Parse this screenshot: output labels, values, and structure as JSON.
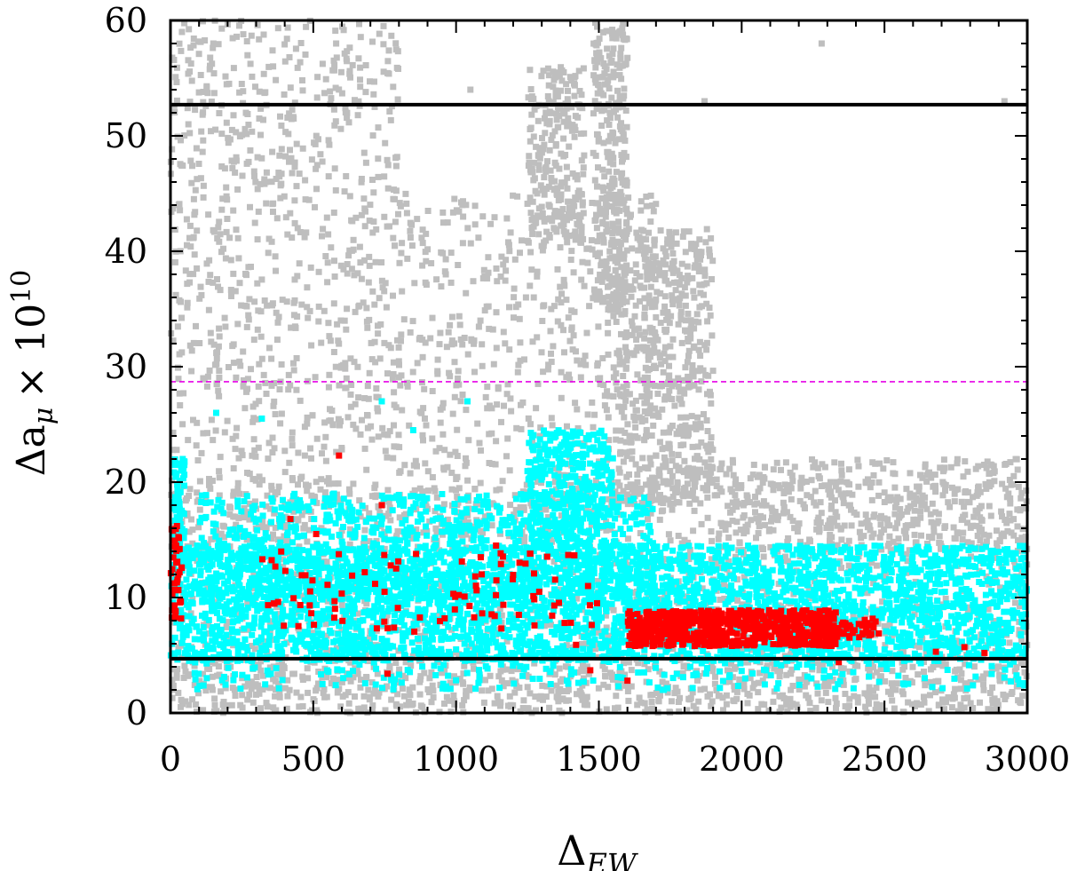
{
  "chart_data": {
    "type": "scatter",
    "title": "",
    "xlabel": "Δ",
    "xlabel_sub": "EW",
    "ylabel": "Δa",
    "ylabel_sub": "μ",
    "ylabel_suffix": "× 10",
    "ylabel_sup": "10",
    "xlim": [
      0,
      3000
    ],
    "ylim": [
      0,
      60
    ],
    "x_ticks": [
      0,
      500,
      1000,
      1500,
      2000,
      2500,
      3000
    ],
    "y_ticks": [
      0,
      10,
      20,
      30,
      40,
      50,
      60
    ],
    "x_tick_labels": [
      "0",
      "500",
      "1000",
      "1500",
      "2000",
      "2500",
      "3000"
    ],
    "y_tick_labels": [
      "0",
      "10",
      "20",
      "30",
      "40",
      "50",
      "60"
    ],
    "grid": false,
    "legend": "none",
    "reference_lines": [
      {
        "y": 52.7,
        "color": "#000000",
        "style": "solid"
      },
      {
        "y": 4.7,
        "color": "#000000",
        "style": "solid"
      },
      {
        "y": 28.7,
        "color": "#e600e6",
        "style": "dashed"
      }
    ],
    "series": [
      {
        "color": "#bebebe",
        "regions": [
          {
            "x": [
              0,
              3000
            ],
            "y": [
              0,
              20
            ],
            "n": 1600
          },
          {
            "x": [
              0,
              800
            ],
            "y": [
              15,
              60
            ],
            "n": 900
          },
          {
            "x": [
              800,
              1700
            ],
            "y": [
              15,
              45
            ],
            "n": 600
          },
          {
            "x": [
              1250,
              1450
            ],
            "y": [
              40,
              56
            ],
            "n": 250
          },
          {
            "x": [
              1480,
              1600
            ],
            "y": [
              35,
              60
            ],
            "n": 300
          },
          {
            "x": [
              1550,
              1900
            ],
            "y": [
              18,
              42
            ],
            "n": 600
          },
          {
            "x": [
              1900,
              3000
            ],
            "y": [
              14,
              22
            ],
            "n": 400
          },
          {
            "x": [
              0,
              3000
            ],
            "y": [
              0,
              5
            ],
            "n": 500
          }
        ],
        "points": [
          [
            40,
            59
          ],
          [
            150,
            58
          ],
          [
            580,
            58
          ],
          [
            1050,
            54
          ],
          [
            1870,
            53
          ],
          [
            2280,
            58
          ],
          [
            2920,
            53
          ]
        ]
      },
      {
        "color": "#00ffff",
        "regions": [
          {
            "x": [
              0,
              3000
            ],
            "y": [
              4.5,
              14.5
            ],
            "n": 3500
          },
          {
            "x": [
              100,
              1700
            ],
            "y": [
              10,
              19
            ],
            "n": 900
          },
          {
            "x": [
              1250,
              1550
            ],
            "y": [
              14,
              24.5
            ],
            "n": 350
          },
          {
            "x": [
              10,
              50
            ],
            "y": [
              12,
              22
            ],
            "n": 80
          },
          {
            "x": [
              0,
              3000
            ],
            "y": [
              2,
              5
            ],
            "n": 250
          }
        ],
        "points": [
          [
            1040,
            27
          ],
          [
            740,
            27
          ],
          [
            160,
            26
          ],
          [
            320,
            25.5
          ],
          [
            850,
            24.5
          ]
        ]
      },
      {
        "color": "#ff0000",
        "regions": [
          {
            "x": [
              1600,
              2330
            ],
            "y": [
              5.8,
              8.9
            ],
            "n": 700
          },
          {
            "x": [
              2330,
              2480
            ],
            "y": [
              6.5,
              8.2
            ],
            "n": 40
          },
          {
            "x": [
              0,
              40
            ],
            "y": [
              8,
              16.5
            ],
            "n": 40
          },
          {
            "x": [
              300,
              1500
            ],
            "y": [
              7,
              14
            ],
            "n": 90
          }
        ],
        "points": [
          [
            590,
            22.3
          ],
          [
            740,
            18
          ],
          [
            420,
            16.8
          ],
          [
            510,
            15.5
          ],
          [
            1140,
            14.5
          ],
          [
            1260,
            13.8
          ],
          [
            760,
            3.4
          ],
          [
            1600,
            2.8
          ],
          [
            1470,
            3.7
          ],
          [
            2340,
            4.4
          ],
          [
            2680,
            5.3
          ],
          [
            2780,
            5.7
          ],
          [
            2850,
            5.2
          ],
          [
            1220,
            8.5
          ],
          [
            1380,
            7.8
          ],
          [
            1420,
            5.9
          ]
        ]
      }
    ]
  }
}
